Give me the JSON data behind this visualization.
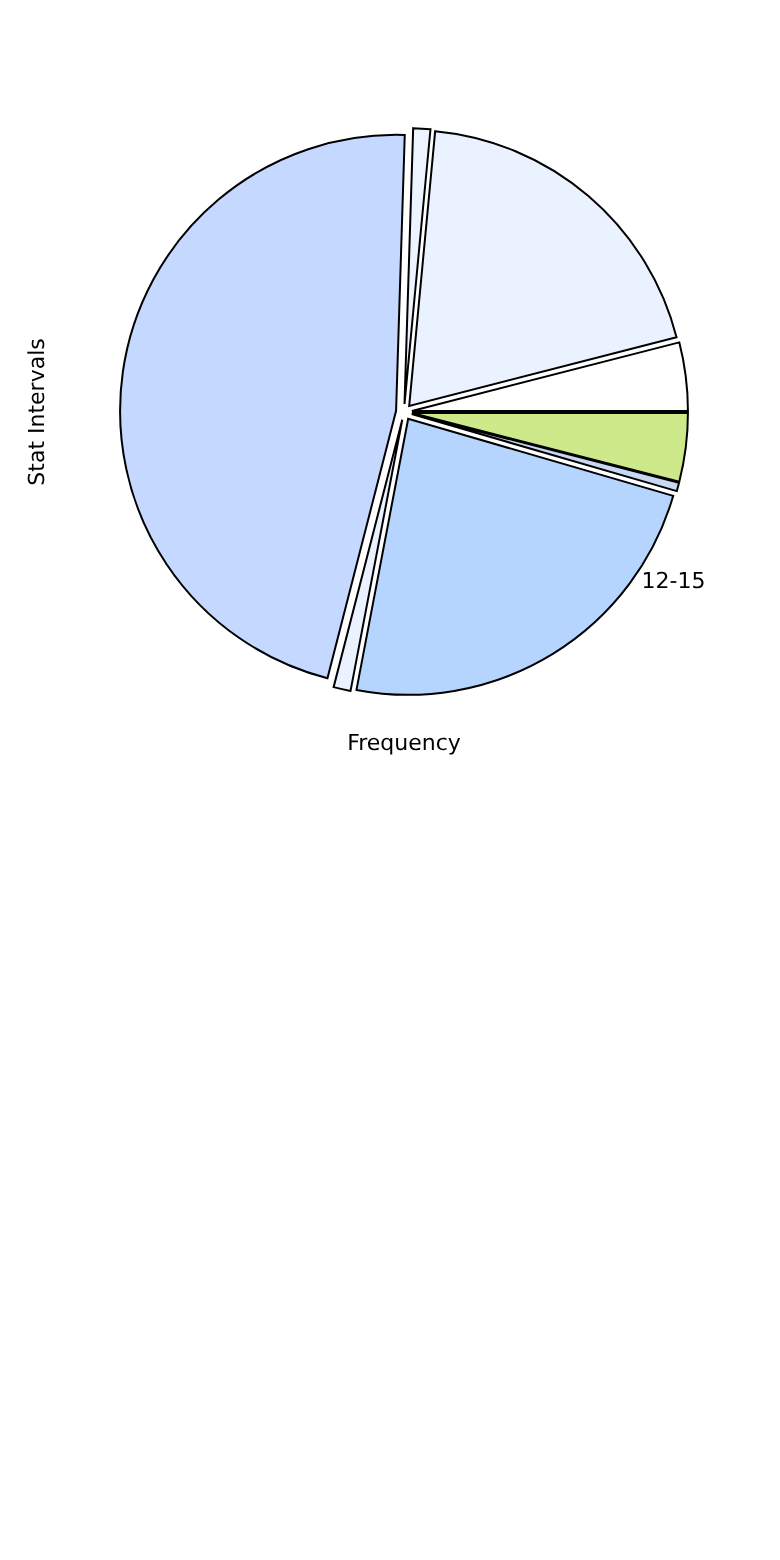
{
  "chart_data": {
    "type": "pie",
    "xlabel": "Frequency",
    "ylabel": "Stat Intervals",
    "categories": [
      null,
      null,
      "12-15",
      null,
      null,
      null,
      null,
      null
    ],
    "values": [
      4,
      0.5,
      23.5,
      1,
      46.5,
      1,
      19.5,
      4
    ],
    "colors": [
      "#cde98a",
      "#c8d8f0",
      "#b5d5ff",
      "#eaf2ff",
      "#c5d8ff",
      "#eef4ff",
      "#eaf2ff",
      "#ffffff"
    ]
  }
}
